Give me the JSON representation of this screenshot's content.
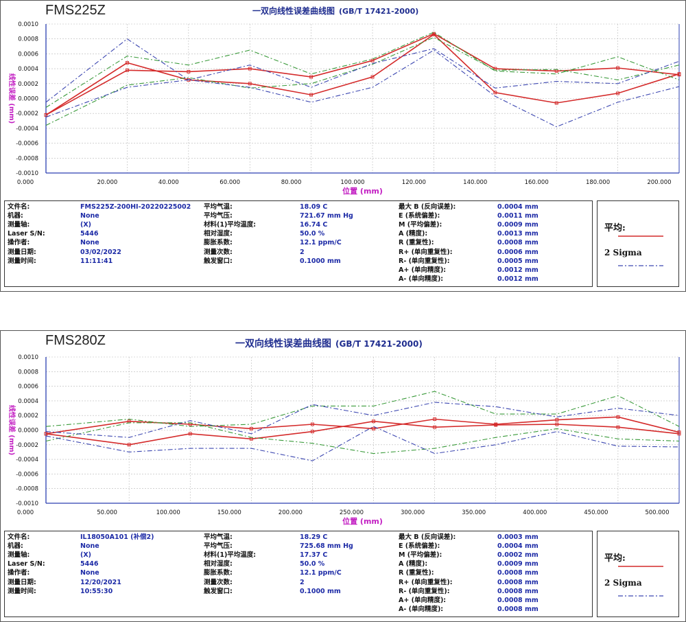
{
  "panels": [
    {
      "machine": "FMS225Z",
      "title": "一双向线性误差曲线图",
      "standard": "(GB/T 17421-2000)",
      "chart_data": {
        "type": "line",
        "xlabel": "位置 (mm)",
        "ylabel": "线性误差 (mm)",
        "xlim": [
          0,
          206.5
        ],
        "ylim": [
          -0.001,
          0.001
        ],
        "x_ticks": [
          0,
          20,
          40,
          60,
          80,
          100,
          120,
          140,
          160,
          180,
          200
        ],
        "x_tick_labels": [
          "0.000",
          "20.000",
          "40.000",
          "60.000",
          "80.000",
          "100.000",
          "120.000",
          "140.000",
          "160.000",
          "180.000",
          "200.000"
        ],
        "y_ticks": [
          0.001,
          0.0008,
          0.0006,
          0.0004,
          0.0002,
          0,
          -0.0002,
          -0.0004,
          -0.0006,
          -0.0008,
          -0.001
        ],
        "y_tick_labels": [
          "0.0010",
          "0.0008",
          "0.0006",
          "0.0004",
          "0.0002",
          "0.0000",
          "-0.0002",
          "-0.0004",
          "-0.0006",
          "-0.0008",
          "-0.0010"
        ],
        "grid": true,
        "x": [
          0,
          26.5,
          46.5,
          66.5,
          86.5,
          106.5,
          126.5,
          146.5,
          166.5,
          186.5,
          206.5
        ],
        "series": [
          {
            "name": "平均",
            "group": "mean",
            "values": [
              -0.00022,
              0.00038,
              0.00036,
              0.0004,
              0.00029,
              0.00051,
              0.00087,
              0.0004,
              0.00037,
              0.00041,
              0.00032
            ]
          },
          {
            "name": "平均",
            "group": "mean",
            "values": [
              -0.00022,
              0.00048,
              0.00025,
              0.0002,
              5e-05,
              0.00029,
              0.00086,
              8e-05,
              -6e-05,
              7e-05,
              0.00033
            ]
          },
          {
            "group": "sigma-green",
            "values": [
              -0.00012,
              0.00057,
              0.00045,
              0.00065,
              0.00033,
              0.00053,
              0.00089,
              0.00037,
              0.00033,
              0.00056,
              0.00025
            ]
          },
          {
            "group": "sigma-green",
            "values": [
              -0.00036,
              0.00018,
              0.00028,
              0.00014,
              0.0002,
              0.00046,
              0.00082,
              0.00038,
              0.00039,
              0.00025,
              0.00045
            ]
          },
          {
            "name": "2 Sigma",
            "group": "sigma-blue",
            "values": [
              -5e-05,
              0.0008,
              0.00025,
              0.00045,
              0.00015,
              0.00047,
              0.00067,
              0.00014,
              0.00023,
              0.0002,
              0.0005
            ]
          },
          {
            "name": "2 Sigma",
            "group": "sigma-blue",
            "values": [
              -0.00025,
              0.00015,
              0.00025,
              0.00015,
              -5e-05,
              0.00015,
              0.00065,
              3e-05,
              -0.00038,
              -5e-05,
              0.00016
            ]
          }
        ]
      },
      "info": {
        "col1": [
          {
            "label": "文件名:",
            "value": "FMS225Z-200HI-20220225002"
          },
          {
            "label": "机器:",
            "value": "None"
          },
          {
            "label": "测量轴:",
            "value": "(X)"
          },
          {
            "label": "Laser S/N:",
            "value": "5446"
          },
          {
            "label": "操作者:",
            "value": "None"
          },
          {
            "label": "测量日期:",
            "value": "03/02/2022"
          },
          {
            "label": "测量时间:",
            "value": "11:11:41"
          }
        ],
        "col2": [
          {
            "label": "平均气温:",
            "value": "18.09 C"
          },
          {
            "label": "平均气压:",
            "value": "721.67 mm Hg"
          },
          {
            "label": "材料(1)平均温度:",
            "value": "16.74 C"
          },
          {
            "label": "相对湿度:",
            "value": "50.0 %"
          },
          {
            "label": "膨胀系数:",
            "value": "12.1 ppm/C"
          },
          {
            "label": "测量次数:",
            "value": "2"
          },
          {
            "label": "触发窗口:",
            "value": "0.1000 mm"
          }
        ],
        "col3": [
          {
            "label": "最大 B (反向误差):",
            "value": "0.0004 mm"
          },
          {
            "label": "E (系统偏差):",
            "value": "0.0011 mm"
          },
          {
            "label": "M (平均偏差):",
            "value": "0.0009 mm"
          },
          {
            "label": "A (精度):",
            "value": "0.0013 mm"
          },
          {
            "label": "R (重复性):",
            "value": "0.0008 mm"
          },
          {
            "label": "R+ (单向重复性):",
            "value": "0.0006 mm"
          },
          {
            "label": "R- (单向重复性):",
            "value": "0.0005 mm"
          },
          {
            "label": "A+ (单向精度):",
            "value": "0.0012 mm"
          },
          {
            "label": "A- (单向精度):",
            "value": "0.0012 mm"
          }
        ]
      },
      "legend": {
        "mean": "平均:",
        "sigma": "2 Sigma"
      }
    },
    {
      "machine": "FMS280Z",
      "title": "一双向线性误差曲线图",
      "standard": "(GB/T 17421-2000)",
      "chart_data": {
        "type": "line",
        "xlabel": "位置 (mm)",
        "ylabel": "线性误差 (mm)",
        "xlim": [
          0,
          518
        ],
        "ylim": [
          -0.001,
          0.001
        ],
        "x_ticks": [
          0,
          50,
          100,
          150,
          200,
          250,
          300,
          350,
          400,
          450,
          500
        ],
        "x_tick_labels": [
          "0.000",
          "50.000",
          "100.000",
          "150.000",
          "200.000",
          "250.000",
          "300.000",
          "350.000",
          "400.000",
          "450.000",
          "500.000"
        ],
        "y_ticks": [
          0.001,
          0.0008,
          0.0006,
          0.0004,
          0.0002,
          0,
          -0.0002,
          -0.0004,
          -0.0006,
          -0.0008,
          -0.001
        ],
        "y_tick_labels": [
          "0.0010",
          "0.0008",
          "0.0006",
          "0.0004",
          "0.0002",
          "0.0000",
          "-0.0002",
          "-0.0004",
          "-0.0006",
          "-0.0008",
          "-0.0010"
        ],
        "grid": true,
        "x": [
          0,
          68,
          118,
          168,
          218,
          268,
          318,
          368,
          418,
          468,
          518
        ],
        "series": [
          {
            "name": "平均",
            "group": "mean",
            "values": [
              -5e-05,
              0.00012,
              8e-05,
              2e-05,
              8e-05,
              2e-05,
              0.00015,
              8e-05,
              0.00014,
              0.00018,
              -3e-05
            ]
          },
          {
            "name": "平均",
            "group": "mean",
            "values": [
              -5e-05,
              -0.0002,
              -5e-05,
              -0.00012,
              -2e-05,
              0.00012,
              4e-05,
              7e-05,
              8e-05,
              4e-05,
              -5e-05
            ]
          },
          {
            "group": "sigma-green",
            "values": [
              5e-05,
              0.00015,
              5e-05,
              8e-05,
              0.00033,
              0.00033,
              0.00053,
              0.00022,
              0.00022,
              0.00047,
              5e-05
            ]
          },
          {
            "group": "sigma-green",
            "values": [
              -0.00015,
              0.0001,
              0.0001,
              -0.0001,
              -0.00018,
              -0.00032,
              -0.00025,
              -0.0001,
              2e-05,
              -0.00012,
              -0.00015
            ]
          },
          {
            "name": "2 Sigma",
            "group": "sigma-blue",
            "values": [
              -2e-05,
              -0.0001,
              0.00013,
              -5e-05,
              0.00035,
              0.0002,
              0.00038,
              0.00032,
              0.00018,
              0.0003,
              0.0002
            ]
          },
          {
            "name": "2 Sigma",
            "group": "sigma-blue",
            "values": [
              -8e-05,
              -0.0003,
              -0.00025,
              -0.00025,
              -0.00042,
              5e-05,
              -0.00032,
              -0.0002,
              -2e-05,
              -0.00022,
              -0.00023
            ]
          }
        ]
      },
      "info": {
        "col1": [
          {
            "label": "文件名:",
            "value": "IL18050A101 (补偿2)"
          },
          {
            "label": "机器:",
            "value": "None"
          },
          {
            "label": "测量轴:",
            "value": "(X)"
          },
          {
            "label": "Laser S/N:",
            "value": "5446"
          },
          {
            "label": "操作者:",
            "value": "None"
          },
          {
            "label": "测量日期:",
            "value": "12/20/2021"
          },
          {
            "label": "测量时间:",
            "value": "10:55:30"
          }
        ],
        "col2": [
          {
            "label": "平均气温:",
            "value": "18.29 C"
          },
          {
            "label": "平均气压:",
            "value": "725.68 mm Hg"
          },
          {
            "label": "材料(1)平均温度:",
            "value": "17.37 C"
          },
          {
            "label": "相对湿度:",
            "value": "50.0 %"
          },
          {
            "label": "膨胀系数:",
            "value": "12.1 ppm/C"
          },
          {
            "label": "测量次数:",
            "value": "2"
          },
          {
            "label": "触发窗口:",
            "value": "0.1000 mm"
          }
        ],
        "col3": [
          {
            "label": "最大 B (反向误差):",
            "value": "0.0003 mm"
          },
          {
            "label": "E (系统偏差):",
            "value": "0.0004 mm"
          },
          {
            "label": "M (平均偏差):",
            "value": "0.0002 mm"
          },
          {
            "label": "A (精度):",
            "value": "0.0009 mm"
          },
          {
            "label": "R (重复性):",
            "value": "0.0008 mm"
          },
          {
            "label": "R+ (单向重复性):",
            "value": "0.0008 mm"
          },
          {
            "label": "R- (单向重复性):",
            "value": "0.0008 mm"
          },
          {
            "label": "A+ (单向精度):",
            "value": "0.0008 mm"
          },
          {
            "label": "A- (单向精度):",
            "value": "0.0008 mm"
          }
        ]
      },
      "legend": {
        "mean": "平均:",
        "sigma": "2 Sigma"
      }
    }
  ],
  "colors": {
    "mean": "#d42a2a",
    "sigma-green": "#3a9a3a",
    "sigma-blue": "#3b46b0",
    "axis": "#2b3fb0",
    "grid": "#b8b8b8",
    "ylabel": "#c21ec2",
    "xlabel": "#c21ec2",
    "title": "#1f2d8f",
    "value_text": "#1c2aa6"
  }
}
